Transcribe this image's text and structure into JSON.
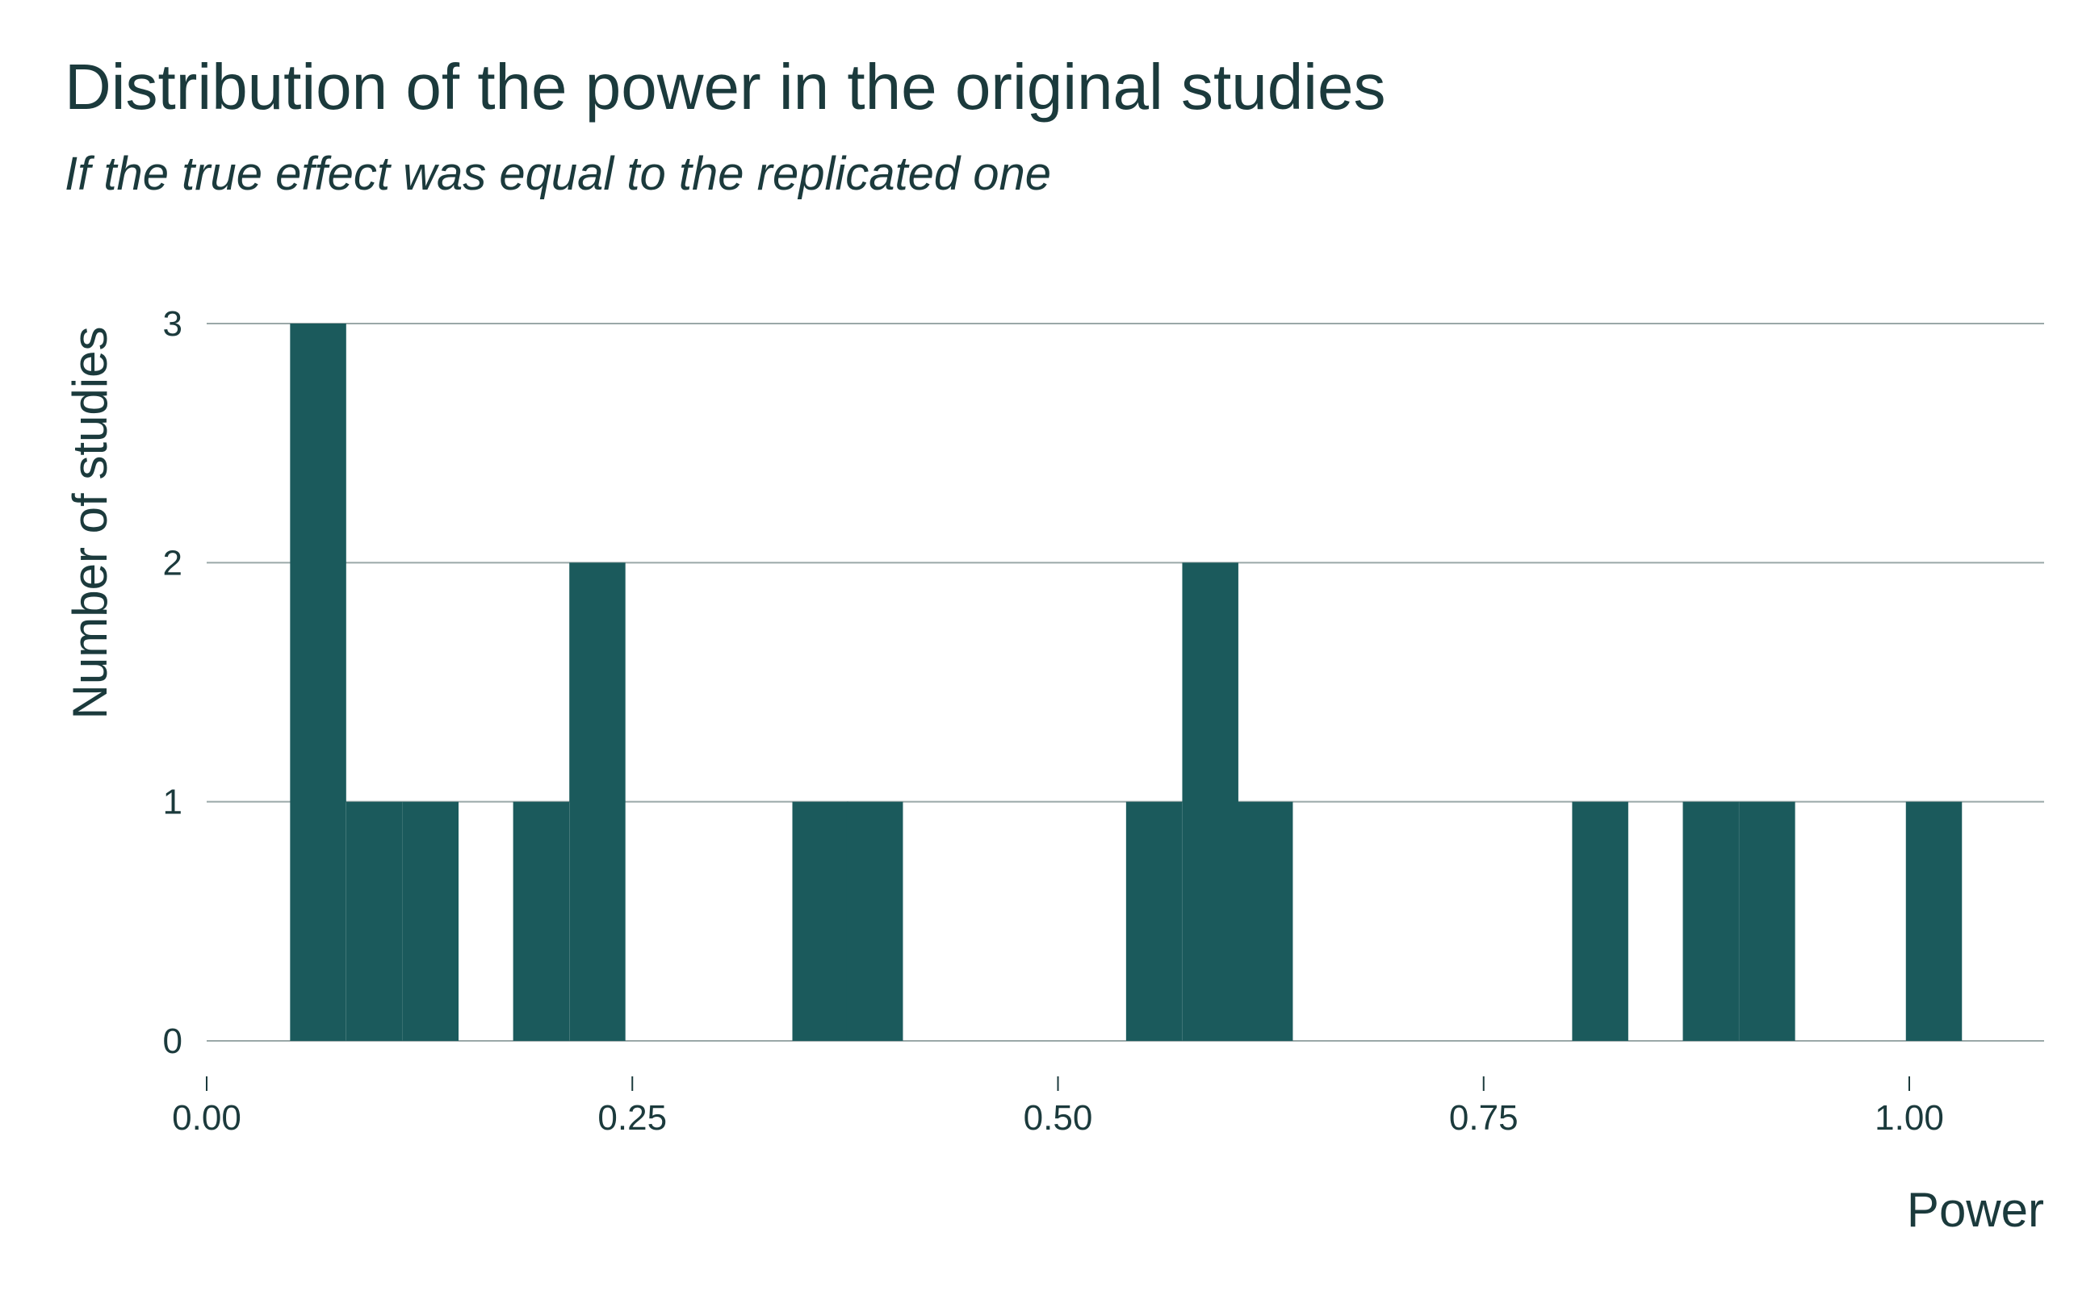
{
  "chart_data": {
    "type": "bar",
    "title": "Distribution of the power in the original studies",
    "subtitle": "If the true effect was equal to the replicated one",
    "xlabel": "Power",
    "ylabel": "Number of studies",
    "xlim": [
      0,
      1.08
    ],
    "ylim": [
      0,
      3
    ],
    "x_ticks": [
      "0.00",
      "0.25",
      "0.50",
      "0.75",
      "1.00"
    ],
    "x_tick_values": [
      0,
      0.25,
      0.5,
      0.75,
      1.0
    ],
    "y_ticks": [
      "0",
      "1",
      "2",
      "3"
    ],
    "y_tick_values": [
      0,
      1,
      2,
      3
    ],
    "bin_width": 0.0327,
    "bins": [
      {
        "x0": 0.049,
        "count": 3
      },
      {
        "x0": 0.082,
        "count": 1
      },
      {
        "x0": 0.115,
        "count": 1
      },
      {
        "x0": 0.18,
        "count": 1
      },
      {
        "x0": 0.213,
        "count": 2
      },
      {
        "x0": 0.344,
        "count": 1
      },
      {
        "x0": 0.376,
        "count": 1
      },
      {
        "x0": 0.54,
        "count": 1
      },
      {
        "x0": 0.573,
        "count": 2
      },
      {
        "x0": 0.605,
        "count": 1
      },
      {
        "x0": 0.802,
        "count": 1
      },
      {
        "x0": 0.867,
        "count": 1
      },
      {
        "x0": 0.9,
        "count": 1
      },
      {
        "x0": 0.998,
        "count": 1
      }
    ],
    "grid": "horizontal",
    "bar_color": "#1b5a5c",
    "grid_color": "#9aa8a8",
    "text_color": "#1b3a3c"
  }
}
